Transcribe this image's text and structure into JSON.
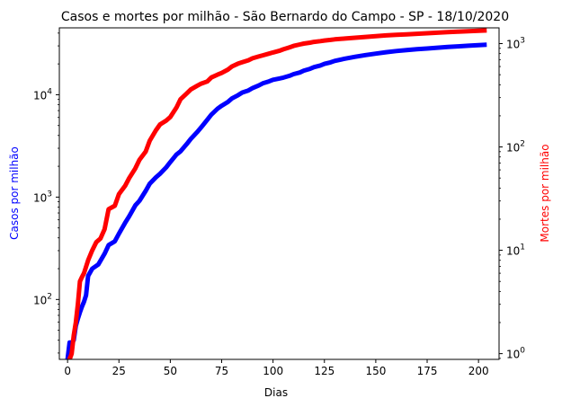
{
  "chart_data": {
    "type": "line",
    "title": "Casos e mortes por milhão - São Bernardo do Campo - SP - 18/10/2020",
    "xlabel": "Dias",
    "ylabel_left": "Casos por milhão",
    "ylabel_right": "Mortes por milhão",
    "xlim": [
      -4,
      210
    ],
    "x_ticks": [
      0,
      25,
      50,
      75,
      100,
      125,
      150,
      175,
      200
    ],
    "ylim_left": [
      26,
      45000
    ],
    "ylim_right": [
      0.88,
      1420
    ],
    "y_scale": "log",
    "left_tick_labels": [
      "10",
      "10",
      "10"
    ],
    "left_tick_exps": [
      "2",
      "3",
      "4"
    ],
    "left_tick_values": [
      100,
      1000,
      10000
    ],
    "right_tick_labels": [
      "10",
      "10",
      "10",
      "10"
    ],
    "right_tick_exps": [
      "0",
      "1",
      "2",
      "3"
    ],
    "right_tick_values": [
      1,
      10,
      100,
      1000
    ],
    "colors": {
      "cases": "#0000ff",
      "deaths": "#ff0000",
      "left_label": "#0000ff",
      "right_label": "#ff0000"
    },
    "series": [
      {
        "axis": "left",
        "color": "#0000ff",
        "x": [
          0,
          1,
          2,
          3,
          4,
          5,
          6,
          7,
          8,
          9,
          10,
          12,
          15,
          18,
          20,
          23,
          25,
          28,
          30,
          33,
          35,
          38,
          40,
          43,
          45,
          48,
          50,
          53,
          55,
          58,
          60,
          63,
          65,
          68,
          70,
          73,
          75,
          78,
          80,
          83,
          85,
          88,
          90,
          93,
          95,
          98,
          100,
          103,
          105,
          108,
          110,
          113,
          115,
          118,
          120,
          123,
          125,
          128,
          130,
          135,
          140,
          145,
          150,
          155,
          160,
          165,
          170,
          175,
          180,
          185,
          190,
          195,
          200,
          204
        ],
        "y": [
          26,
          38,
          38,
          40,
          55,
          65,
          75,
          85,
          95,
          110,
          170,
          200,
          220,
          280,
          340,
          370,
          440,
          560,
          650,
          830,
          920,
          1150,
          1350,
          1560,
          1690,
          1950,
          2200,
          2600,
          2800,
          3300,
          3700,
          4300,
          4800,
          5700,
          6400,
          7300,
          7800,
          8500,
          9200,
          9900,
          10500,
          11000,
          11600,
          12300,
          12900,
          13500,
          14000,
          14400,
          14700,
          15300,
          15900,
          16500,
          17200,
          17900,
          18600,
          19300,
          20000,
          20700,
          21400,
          22500,
          23500,
          24400,
          25200,
          26000,
          26700,
          27300,
          27800,
          28300,
          28800,
          29300,
          29700,
          30100,
          30500,
          30800
        ]
      },
      {
        "axis": "right",
        "color": "#ff0000",
        "x": [
          0,
          1,
          2,
          3,
          4,
          5,
          6,
          7,
          8,
          10,
          12,
          14,
          16,
          18,
          20,
          23,
          25,
          28,
          30,
          33,
          35,
          38,
          40,
          43,
          45,
          48,
          50,
          53,
          55,
          58,
          60,
          63,
          65,
          68,
          70,
          73,
          75,
          78,
          80,
          83,
          85,
          88,
          90,
          93,
          95,
          98,
          100,
          103,
          105,
          108,
          110,
          113,
          115,
          118,
          120,
          123,
          125,
          128,
          130,
          135,
          140,
          145,
          150,
          155,
          160,
          165,
          170,
          175,
          180,
          185,
          190,
          195,
          200,
          204
        ],
        "y": [
          0.88,
          0.88,
          1.0,
          1.5,
          2.0,
          3.0,
          5.0,
          5.5,
          6.0,
          8.0,
          10,
          12,
          13,
          16,
          25,
          27,
          35,
          42,
          50,
          62,
          75,
          90,
          115,
          145,
          165,
          180,
          195,
          240,
          290,
          330,
          360,
          390,
          410,
          430,
          470,
          500,
          520,
          560,
          600,
          640,
          660,
          690,
          720,
          750,
          770,
          800,
          820,
          850,
          880,
          920,
          950,
          980,
          1000,
          1020,
          1040,
          1055,
          1070,
          1085,
          1100,
          1120,
          1140,
          1160,
          1180,
          1200,
          1215,
          1230,
          1245,
          1260,
          1275,
          1290,
          1305,
          1315,
          1330,
          1340
        ]
      }
    ]
  }
}
